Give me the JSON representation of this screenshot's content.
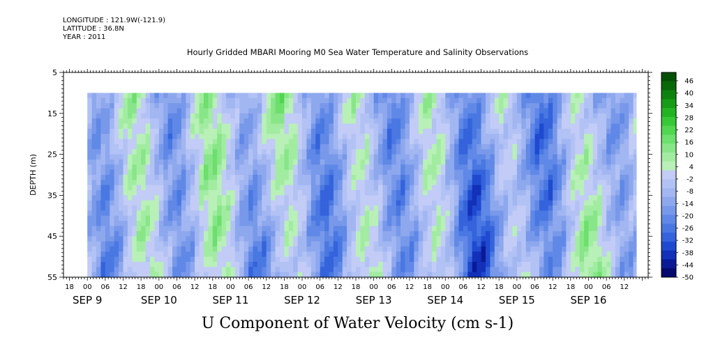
{
  "header": {
    "longitude_line": "LONGITUDE : 121.9W(-121.9)",
    "latitude_line": "LATITUDE : 36.8N",
    "year_line": "YEAR : 2011"
  },
  "chart_data": {
    "type": "heatmap",
    "title": "Hourly Gridded MBARI Mooring M0 Sea Water Temperature and Salinity Observations",
    "ylabel": "DEPTH (m)",
    "variable_label": "U Component of Water Velocity (cm s-1)",
    "y_axis": {
      "range": [
        5,
        55
      ],
      "inverted": true,
      "tick_labels": [
        "5",
        "15",
        "25",
        "35",
        "45",
        "55"
      ]
    },
    "x_axis": {
      "range_hours": [
        "SEP 8 16:00",
        "SEP 16 20:00"
      ],
      "hour_tick_labels": [
        "18",
        "00",
        "06",
        "12",
        "18",
        "00",
        "06",
        "12",
        "18",
        "00",
        "06",
        "12",
        "18",
        "00",
        "06",
        "12",
        "18",
        "00",
        "06",
        "12",
        "18",
        "00",
        "06",
        "12",
        "18",
        "00",
        "06",
        "12",
        "18",
        "00",
        "06",
        "12"
      ],
      "day_labels": [
        "SEP  9",
        "SEP 10",
        "SEP 11",
        "SEP 12",
        "SEP 13",
        "SEP 14",
        "SEP 15",
        "SEP 16"
      ]
    },
    "data_extent": {
      "depth_top": 10,
      "depth_bottom": 55,
      "time_start": "SEP 9 00:00",
      "time_end": "SEP 16 16:00"
    },
    "colorbar": {
      "labels": [
        "46",
        "40",
        "34",
        "28",
        "22",
        "16",
        "10",
        "4",
        "-2",
        "-8",
        "-14",
        "-20",
        "-26",
        "-32",
        "-38",
        "-44",
        "-50"
      ],
      "range": [
        -50,
        52
      ],
      "step": 3,
      "negative_colors": [
        "#050a6e",
        "#0a1a96",
        "#1230b8",
        "#1f4ad0",
        "#3463dc",
        "#4a78e2",
        "#6088e6",
        "#7898ea",
        "#8ea8ee",
        "#a2b6f2",
        "#b2c2f4",
        "#c2ccf6"
      ],
      "positive_colors": [
        "#b8f0b8",
        "#a2eca2",
        "#88e688",
        "#6cdf6c",
        "#50d650",
        "#36c836",
        "#22b422",
        "#169c16",
        "#0e820e",
        "#086808",
        "#045004"
      ]
    },
    "approx_field_description": "Alternating bands of negative (blue/lavender, about -2 to -30) and positive (green, about 0 to 20) velocity varying with time and depth"
  }
}
